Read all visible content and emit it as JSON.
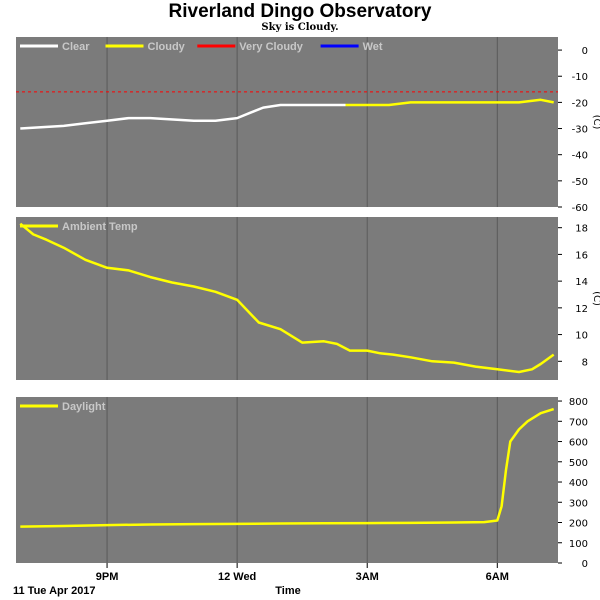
{
  "header": {
    "title": "Riverland Dingo Observatory",
    "subtitle": "Sky is Cloudy."
  },
  "footer": {
    "date_label": "11 Tue Apr 2017",
    "time_label": "Time"
  },
  "colors": {
    "panel_bg": "#7b7b7b",
    "grid": "#5a5a5a",
    "clear": "#ffffff",
    "cloudy": "#ffff00",
    "very_cloudy": "#ff0000",
    "wet": "#0000ff"
  },
  "chart_data": [
    {
      "type": "line",
      "name": "sky",
      "ylabel": "(C)",
      "ylim": [
        -60,
        5
      ],
      "yticks": [
        0,
        -10,
        -20,
        -30,
        -40,
        -50,
        -60
      ],
      "legend": [
        {
          "name": "Clear",
          "color": "#ffffff"
        },
        {
          "name": "Cloudy",
          "color": "#ffff00"
        },
        {
          "name": "Very Cloudy",
          "color": "#ff0000"
        },
        {
          "name": "Wet",
          "color": "#0000ff"
        }
      ],
      "threshold": {
        "name": "Very Cloudy",
        "y": -16
      },
      "series": [
        {
          "name": "Clear",
          "x": [
            19.0,
            20.0,
            20.5,
            21.0,
            21.5,
            22.0,
            23.0,
            23.5,
            24.0,
            24.3,
            24.6,
            25.0,
            26.0,
            26.5
          ],
          "y": [
            -30,
            -29,
            -28,
            -27,
            -26,
            -26,
            -27,
            -27,
            -26,
            -24,
            -22,
            -21,
            -21,
            -21
          ]
        },
        {
          "name": "Cloudy",
          "x": [
            26.5,
            27.0,
            27.5,
            28.0,
            28.5,
            29.0,
            29.5,
            30.0,
            30.5,
            31.0,
            31.3
          ],
          "y": [
            -21,
            -21,
            -21,
            -20,
            -20,
            -20,
            -20,
            -20,
            -20,
            -19,
            -20
          ]
        }
      ]
    },
    {
      "type": "line",
      "name": "ambient",
      "ylabel": "(C)",
      "ylim": [
        6.6,
        18.8
      ],
      "yticks": [
        18,
        16,
        14,
        12,
        10,
        8
      ],
      "legend": [
        {
          "name": "Ambient Temp",
          "color": "#ffff00"
        }
      ],
      "series": [
        {
          "name": "Ambient Temp",
          "x": [
            19.0,
            19.3,
            19.6,
            20.0,
            20.5,
            21.0,
            21.5,
            22.0,
            22.5,
            23.0,
            23.5,
            24.0,
            24.5,
            25.0,
            25.5,
            26.0,
            26.3,
            26.6,
            27.0,
            27.3,
            27.6,
            28.0,
            28.5,
            29.0,
            29.5,
            30.0,
            30.5,
            30.8,
            31.0,
            31.3
          ],
          "y": [
            18.3,
            17.5,
            17.1,
            16.5,
            15.6,
            15.0,
            14.8,
            14.3,
            13.9,
            13.6,
            13.2,
            12.6,
            10.9,
            10.4,
            9.4,
            9.5,
            9.3,
            8.8,
            8.8,
            8.6,
            8.5,
            8.3,
            8.0,
            7.9,
            7.6,
            7.4,
            7.2,
            7.4,
            7.8,
            8.5
          ]
        }
      ]
    },
    {
      "type": "line",
      "name": "daylight",
      "ylabel": "",
      "ylim": [
        0,
        820
      ],
      "yticks": [
        800,
        700,
        600,
        500,
        400,
        300,
        200,
        100,
        0
      ],
      "legend": [
        {
          "name": "Daylight",
          "color": "#ffff00"
        }
      ],
      "series": [
        {
          "name": "Daylight",
          "x": [
            19.0,
            20.0,
            21.0,
            22.0,
            23.0,
            24.0,
            25.0,
            26.0,
            27.0,
            28.0,
            29.0,
            29.7,
            30.0,
            30.1,
            30.2,
            30.3,
            30.5,
            30.7,
            31.0,
            31.3
          ],
          "y": [
            180,
            183,
            187,
            190,
            192,
            193,
            195,
            196,
            197,
            198,
            200,
            202,
            210,
            280,
            460,
            600,
            660,
            700,
            740,
            760
          ]
        }
      ]
    }
  ],
  "x_axis": {
    "xlim": [
      18.9,
      31.4
    ],
    "ticks": [
      {
        "x": 21,
        "label": "9PM"
      },
      {
        "x": 24,
        "label": "12 Wed"
      },
      {
        "x": 27,
        "label": "3AM"
      },
      {
        "x": 30,
        "label": "6AM"
      }
    ]
  }
}
